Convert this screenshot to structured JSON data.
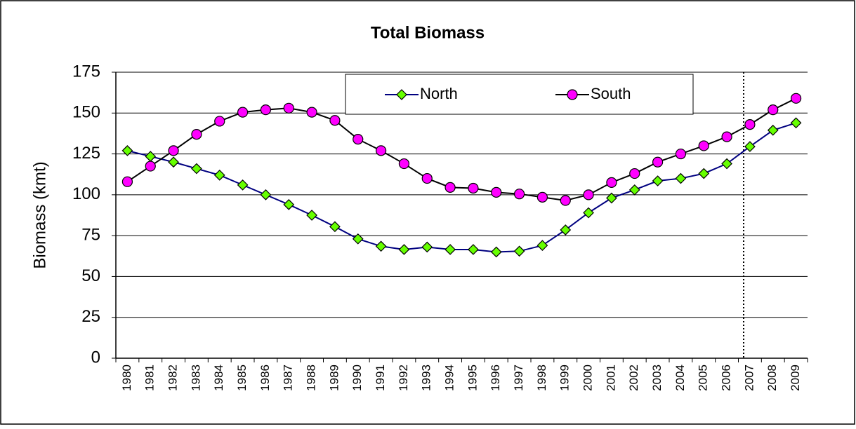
{
  "chart_data": {
    "type": "line",
    "title": "Total Biomass",
    "y_label": "Biomass (kmt)",
    "categories": [
      "1980",
      "1981",
      "1982",
      "1983",
      "1984",
      "1985",
      "1986",
      "1987",
      "1988",
      "1989",
      "1990",
      "1991",
      "1992",
      "1993",
      "1994",
      "1995",
      "1996",
      "1997",
      "1998",
      "1999",
      "2000",
      "2001",
      "2002",
      "2003",
      "2004",
      "2005",
      "2006",
      "2007",
      "2008",
      "2009"
    ],
    "series": [
      {
        "name": "North",
        "color": "#000080",
        "marker": "diamond",
        "marker_color": "#66ff00",
        "values": [
          127,
          123.5,
          120,
          116,
          112,
          106,
          100,
          94,
          87.5,
          80.5,
          73,
          68.5,
          66.5,
          68,
          66.5,
          66.5,
          65,
          65.5,
          69,
          78.5,
          89,
          98,
          103,
          108.5,
          110,
          113,
          119,
          129.5,
          139.5,
          144
        ]
      },
      {
        "name": "South",
        "color": "#000000",
        "marker": "circle",
        "marker_color": "#ff00ff",
        "values": [
          108,
          117.5,
          127,
          137,
          145,
          150.5,
          152,
          153,
          150.5,
          145.5,
          134,
          127,
          119,
          110,
          104.5,
          104,
          101.5,
          100.5,
          98.5,
          96.5,
          100,
          107.5,
          113,
          120,
          125,
          130,
          135.5,
          143,
          152,
          159
        ]
      }
    ],
    "ylim": [
      0,
      175
    ],
    "yticks": [
      0,
      25,
      50,
      75,
      100,
      125,
      150,
      175
    ],
    "grid": true
  }
}
